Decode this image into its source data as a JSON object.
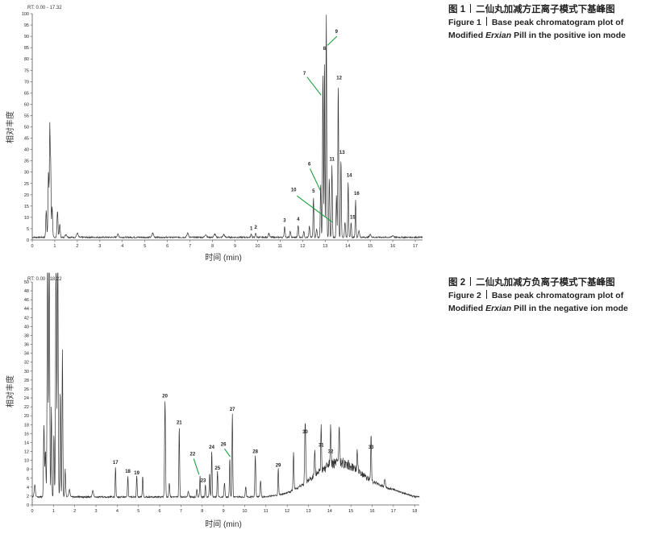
{
  "chart_data": [
    {
      "type": "line",
      "rt_label": "RT: 0.00 - 17.32",
      "xlabel": "时间 (min)",
      "ylabel": "相对丰度",
      "xlim": [
        0,
        17.32
      ],
      "ylim": [
        0,
        100
      ],
      "xticks": [
        0,
        1,
        2,
        3,
        4,
        5,
        6,
        7,
        8,
        9,
        10,
        11,
        12,
        13,
        14,
        15,
        16,
        17
      ],
      "yticks": [
        0,
        5,
        10,
        15,
        20,
        25,
        30,
        35,
        40,
        45,
        50,
        55,
        60,
        65,
        70,
        75,
        80,
        85,
        90,
        95,
        100
      ],
      "baseline": 1.2,
      "peaks": [
        {
          "x": 0.62,
          "y": 13,
          "w": 0.03
        },
        {
          "x": 0.72,
          "y": 30,
          "w": 0.03
        },
        {
          "x": 0.78,
          "y": 51,
          "w": 0.025
        },
        {
          "x": 0.82,
          "y": 32,
          "w": 0.02
        },
        {
          "x": 0.88,
          "y": 15,
          "w": 0.03
        },
        {
          "x": 1.12,
          "y": 13,
          "w": 0.03
        },
        {
          "x": 1.22,
          "y": 7,
          "w": 0.03
        },
        {
          "x": 1.5,
          "y": 2.5,
          "w": 0.05
        },
        {
          "x": 2.0,
          "y": 3,
          "w": 0.05
        },
        {
          "x": 3.8,
          "y": 2.5,
          "w": 0.05
        },
        {
          "x": 5.35,
          "y": 3,
          "w": 0.05
        },
        {
          "x": 6.9,
          "y": 3,
          "w": 0.05
        },
        {
          "x": 7.7,
          "y": 2.5,
          "w": 0.05
        },
        {
          "x": 8.1,
          "y": 2.6,
          "w": 0.05
        },
        {
          "x": 8.5,
          "y": 2.4,
          "w": 0.05
        },
        {
          "x": 9.72,
          "y": 2.7,
          "w": 0.03
        },
        {
          "x": 9.92,
          "y": 3,
          "w": 0.03
        },
        {
          "x": 10.5,
          "y": 3,
          "w": 0.04
        },
        {
          "x": 11.2,
          "y": 6,
          "w": 0.03
        },
        {
          "x": 11.45,
          "y": 4,
          "w": 0.03
        },
        {
          "x": 11.8,
          "y": 6.5,
          "w": 0.03
        },
        {
          "x": 12.05,
          "y": 4,
          "w": 0.03
        },
        {
          "x": 12.3,
          "y": 6,
          "w": 0.03
        },
        {
          "x": 12.48,
          "y": 19,
          "w": 0.025
        },
        {
          "x": 12.62,
          "y": 5,
          "w": 0.03
        },
        {
          "x": 12.8,
          "y": 25,
          "w": 0.025
        },
        {
          "x": 12.9,
          "y": 74,
          "w": 0.025
        },
        {
          "x": 12.97,
          "y": 82,
          "w": 0.02
        },
        {
          "x": 13.05,
          "y": 100,
          "w": 0.025
        },
        {
          "x": 13.18,
          "y": 28,
          "w": 0.025
        },
        {
          "x": 13.3,
          "y": 33,
          "w": 0.025
        },
        {
          "x": 13.5,
          "y": 20,
          "w": 0.025
        },
        {
          "x": 13.58,
          "y": 69,
          "w": 0.025
        },
        {
          "x": 13.7,
          "y": 36,
          "w": 0.025
        },
        {
          "x": 13.88,
          "y": 8,
          "w": 0.03
        },
        {
          "x": 14.02,
          "y": 26,
          "w": 0.025
        },
        {
          "x": 14.15,
          "y": 8,
          "w": 0.025
        },
        {
          "x": 14.35,
          "y": 18,
          "w": 0.025
        },
        {
          "x": 14.5,
          "y": 4,
          "w": 0.04
        },
        {
          "x": 15.0,
          "y": 2.5,
          "w": 0.05
        },
        {
          "x": 16.0,
          "y": 2,
          "w": 0.05
        }
      ],
      "labels": [
        {
          "text": "1",
          "x": 9.72,
          "y": 4.5
        },
        {
          "text": "2",
          "x": 9.92,
          "y": 5
        },
        {
          "text": "3",
          "x": 11.2,
          "y": 8
        },
        {
          "text": "4",
          "x": 11.8,
          "y": 8.5
        },
        {
          "text": "5",
          "x": 12.48,
          "y": 21
        },
        {
          "text": "6",
          "x": 12.3,
          "y": 33
        },
        {
          "text": "7",
          "x": 12.08,
          "y": 73
        },
        {
          "text": "8",
          "x": 12.97,
          "y": 84
        },
        {
          "text": "9",
          "x": 13.5,
          "y": 91.5
        },
        {
          "text": "10",
          "x": 11.6,
          "y": 21.5
        },
        {
          "text": "11",
          "x": 13.3,
          "y": 35
        },
        {
          "text": "12",
          "x": 13.62,
          "y": 71
        },
        {
          "text": "13",
          "x": 13.75,
          "y": 38
        },
        {
          "text": "14",
          "x": 14.07,
          "y": 28
        },
        {
          "text": "15",
          "x": 14.22,
          "y": 9.5
        },
        {
          "text": "16",
          "x": 14.4,
          "y": 20
        }
      ],
      "leaders": [
        {
          "from": [
            12.2,
            72
          ],
          "to": [
            12.82,
            64
          ]
        },
        {
          "from": [
            12.33,
            31.5
          ],
          "to": [
            12.78,
            22
          ]
        },
        {
          "from": [
            11.75,
            19.5
          ],
          "to": [
            13.3,
            8
          ]
        },
        {
          "from": [
            13.52,
            90
          ],
          "to": [
            13.1,
            86
          ]
        }
      ]
    },
    {
      "type": "line",
      "rt_label": "RT: 0.00 - 18.22",
      "xlabel": "时间 (min)",
      "ylabel": "相对丰度",
      "xlim": [
        0,
        18.22
      ],
      "ylim": [
        0,
        50
      ],
      "xticks": [
        0,
        1,
        2,
        3,
        4,
        5,
        6,
        7,
        8,
        9,
        10,
        11,
        12,
        13,
        14,
        15,
        16,
        17,
        18
      ],
      "yticks": [
        0,
        2,
        4,
        6,
        8,
        10,
        12,
        14,
        16,
        18,
        20,
        22,
        24,
        26,
        28,
        30,
        32,
        34,
        36,
        38,
        40,
        42,
        44,
        46,
        48,
        50
      ],
      "baseline": 1.8,
      "peaks": [
        {
          "x": 0.12,
          "y": 4.5,
          "w": 0.04
        },
        {
          "x": 0.55,
          "y": 18,
          "w": 0.03
        },
        {
          "x": 0.62,
          "y": 12,
          "w": 0.03
        },
        {
          "x": 0.72,
          "y": 60,
          "w": 0.03
        },
        {
          "x": 0.8,
          "y": 60,
          "w": 0.03
        },
        {
          "x": 0.9,
          "y": 22,
          "w": 0.025
        },
        {
          "x": 1.02,
          "y": 16,
          "w": 0.025
        },
        {
          "x": 1.12,
          "y": 60,
          "w": 0.03
        },
        {
          "x": 1.2,
          "y": 60,
          "w": 0.03
        },
        {
          "x": 1.32,
          "y": 26,
          "w": 0.025
        },
        {
          "x": 1.42,
          "y": 35,
          "w": 0.025
        },
        {
          "x": 1.55,
          "y": 8,
          "w": 0.03
        },
        {
          "x": 1.75,
          "y": 3.5,
          "w": 0.04
        },
        {
          "x": 2.85,
          "y": 3.2,
          "w": 0.04
        },
        {
          "x": 3.92,
          "y": 8.6,
          "w": 0.025
        },
        {
          "x": 4.5,
          "y": 6.6,
          "w": 0.025
        },
        {
          "x": 4.92,
          "y": 6.6,
          "w": 0.025
        },
        {
          "x": 5.2,
          "y": 6.5,
          "w": 0.025
        },
        {
          "x": 6.25,
          "y": 23.5,
          "w": 0.03
        },
        {
          "x": 6.45,
          "y": 5,
          "w": 0.03
        },
        {
          "x": 6.92,
          "y": 17.5,
          "w": 0.025
        },
        {
          "x": 7.35,
          "y": 3,
          "w": 0.04
        },
        {
          "x": 7.75,
          "y": 3.5,
          "w": 0.03
        },
        {
          "x": 7.9,
          "y": 6.5,
          "w": 0.025
        },
        {
          "x": 8.15,
          "y": 4.5,
          "w": 0.025
        },
        {
          "x": 8.35,
          "y": 7.2,
          "w": 0.025
        },
        {
          "x": 8.45,
          "y": 12,
          "w": 0.025
        },
        {
          "x": 8.72,
          "y": 7.5,
          "w": 0.025
        },
        {
          "x": 9.05,
          "y": 5,
          "w": 0.03
        },
        {
          "x": 9.3,
          "y": 10.5,
          "w": 0.025
        },
        {
          "x": 9.42,
          "y": 20.5,
          "w": 0.025
        },
        {
          "x": 10.05,
          "y": 4,
          "w": 0.03
        },
        {
          "x": 10.5,
          "y": 11,
          "w": 0.03
        },
        {
          "x": 10.75,
          "y": 5.5,
          "w": 0.03
        },
        {
          "x": 11.58,
          "y": 8,
          "w": 0.025
        },
        {
          "x": 12.3,
          "y": 10,
          "w": 0.03
        },
        {
          "x": 12.85,
          "y": 15.5,
          "w": 0.035
        },
        {
          "x": 13.3,
          "y": 7,
          "w": 0.03
        },
        {
          "x": 13.6,
          "y": 12.5,
          "w": 0.025
        },
        {
          "x": 14.05,
          "y": 11,
          "w": 0.025
        },
        {
          "x": 14.45,
          "y": 9.5,
          "w": 0.03
        },
        {
          "x": 15.3,
          "y": 6.5,
          "w": 0.03
        },
        {
          "x": 15.95,
          "y": 12,
          "w": 0.025
        },
        {
          "x": 16.6,
          "y": 3.5,
          "w": 0.04
        }
      ],
      "hump": {
        "center": 14.4,
        "height": 7,
        "width": 1.6
      },
      "labels": [
        {
          "text": "17",
          "x": 3.92,
          "y": 9.2
        },
        {
          "text": "18",
          "x": 4.5,
          "y": 7.2
        },
        {
          "text": "19",
          "x": 4.92,
          "y": 6.9
        },
        {
          "text": "20",
          "x": 6.25,
          "y": 24.1
        },
        {
          "text": "21",
          "x": 6.92,
          "y": 18.1
        },
        {
          "text": "22",
          "x": 7.55,
          "y": 11.1
        },
        {
          "text": "23",
          "x": 8.05,
          "y": 5.1
        },
        {
          "text": "24",
          "x": 8.45,
          "y": 12.6
        },
        {
          "text": "25",
          "x": 8.72,
          "y": 7.9
        },
        {
          "text": "26",
          "x": 9.0,
          "y": 13.3
        },
        {
          "text": "27",
          "x": 9.42,
          "y": 21.1
        },
        {
          "text": "28",
          "x": 10.5,
          "y": 11.6
        },
        {
          "text": "29",
          "x": 11.58,
          "y": 8.6
        },
        {
          "text": "30",
          "x": 12.85,
          "y": 16.1
        },
        {
          "text": "31",
          "x": 13.6,
          "y": 13.1
        },
        {
          "text": "32",
          "x": 14.05,
          "y": 11.6
        },
        {
          "text": "33",
          "x": 15.95,
          "y": 12.6
        }
      ],
      "leaders": [
        {
          "from": [
            7.6,
            10.4
          ],
          "to": [
            7.85,
            6.8
          ]
        },
        {
          "from": [
            9.05,
            12.6
          ],
          "to": [
            9.32,
            10.8
          ]
        }
      ]
    }
  ],
  "captions": [
    {
      "zh_prefix": "图 1",
      "zh_text": "二仙丸加减方正离子模式下基峰图",
      "en_prefix": "Figure 1",
      "en_line1": "Base peak chromatogram plot of",
      "en_line2_a": "Modified ",
      "en_line2_em": "Erxian",
      "en_line2_b": " Pill in the positive ion mode"
    },
    {
      "zh_prefix": "图 2",
      "zh_text": "二仙丸加减方负离子模式下基峰图",
      "en_prefix": "Figure 2",
      "en_line1": "Base peak chromatogram plot of",
      "en_line2_a": "Modified ",
      "en_line2_em": "Erxian",
      "en_line2_b": " Pill in the negative ion mode"
    }
  ],
  "colors": {
    "trace": "#333333",
    "leader": "#1a9e3c",
    "axis": "#555555",
    "text": "#222222"
  }
}
